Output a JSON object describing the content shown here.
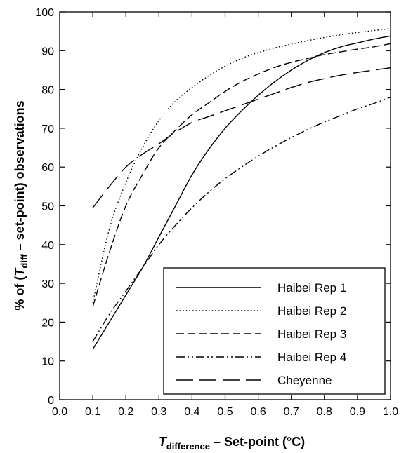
{
  "chart_data": {
    "type": "line",
    "xlabel": {
      "main": "T",
      "sub": "difference",
      "rest": " – Set-point (°C)"
    },
    "ylabel": {
      "pre": "% of (",
      "main": "T",
      "sub": "diff",
      "rest": " – set-point) observations"
    },
    "xlim": [
      0.0,
      1.0
    ],
    "ylim": [
      0,
      100
    ],
    "xticks": [
      "0.0",
      "0.1",
      "0.2",
      "0.3",
      "0.4",
      "0.5",
      "0.6",
      "0.7",
      "0.8",
      "0.9",
      "1.0"
    ],
    "yticks": [
      "0",
      "10",
      "20",
      "30",
      "40",
      "50",
      "60",
      "70",
      "80",
      "90",
      "100"
    ],
    "grid": false,
    "legend_position": "bottom-right",
    "x": [
      0.1,
      0.15,
      0.2,
      0.25,
      0.3,
      0.35,
      0.4,
      0.45,
      0.5,
      0.55,
      0.6,
      0.65,
      0.7,
      0.75,
      0.8,
      0.85,
      0.9,
      0.95,
      1.0
    ],
    "series": [
      {
        "name": "Haibei Rep 1",
        "dash": "solid",
        "values": [
          13,
          20,
          27,
          34,
          42,
          50,
          58,
          64.5,
          70,
          74.5,
          78.5,
          82,
          85,
          87.5,
          89.5,
          91,
          92,
          93,
          93.8
        ]
      },
      {
        "name": "Haibei Rep 2",
        "dash": "dotted",
        "values": [
          25,
          44,
          56,
          65,
          72,
          77,
          80.5,
          83.5,
          86,
          88,
          89.5,
          90.7,
          91.7,
          92.6,
          93.4,
          94.1,
          94.7,
          95.2,
          95.7
        ]
      },
      {
        "name": "Haibei Rep 3",
        "dash": "dashed",
        "values": [
          24,
          38,
          50,
          58,
          65,
          69.5,
          73.5,
          76.5,
          79.5,
          82,
          84,
          85.7,
          87,
          88,
          89,
          89.7,
          90.4,
          91,
          91.8
        ]
      },
      {
        "name": "Haibei Rep 4",
        "dash": "dashdotdot",
        "values": [
          15,
          22,
          28,
          34,
          40,
          45,
          49.5,
          53.5,
          57,
          60,
          62.8,
          65.3,
          67.6,
          69.7,
          71.6,
          73.3,
          75,
          76.4,
          78
        ]
      },
      {
        "name": "Cheyenne",
        "dash": "longdash",
        "values": [
          49.5,
          55,
          60,
          63.3,
          66,
          69,
          71.5,
          73,
          74.5,
          76,
          77.5,
          79,
          80.5,
          81.8,
          82.8,
          83.7,
          84.4,
          85,
          85.6
        ]
      }
    ]
  }
}
